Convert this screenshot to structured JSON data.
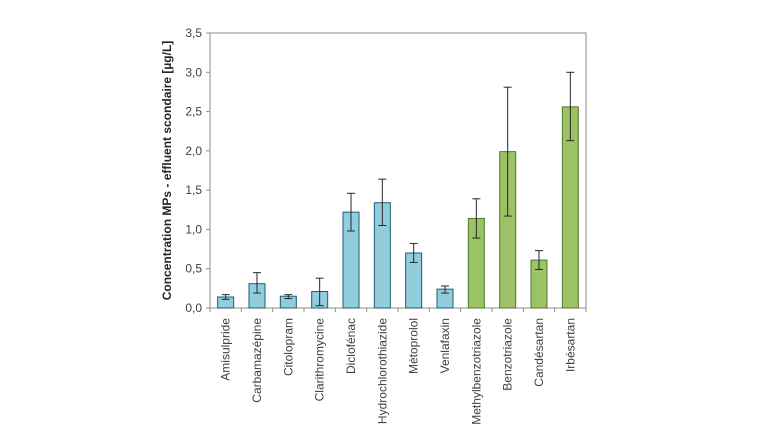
{
  "chart_data": {
    "type": "bar",
    "title": "",
    "xlabel": "",
    "ylabel": "Concentration MPs - effluent scondaire [µg/L]",
    "ylim": [
      0,
      3.5
    ],
    "yticks": [
      "0,0",
      "0,5",
      "1,0",
      "1,5",
      "2,0",
      "2,5",
      "3,0",
      "3,5"
    ],
    "grid": false,
    "legend": "none",
    "categories": [
      "Amisulpride",
      "Carbamazépine",
      "Citolopram",
      "Clarithromycine",
      "Diclofénac",
      "Hydrochlorothiazide",
      "Métoprolol",
      "Venlafaxin",
      "Methylbenzotriazole",
      "Benzotriazole",
      "Candésartan",
      "Irbésartan"
    ],
    "values": [
      0.14,
      0.31,
      0.15,
      0.21,
      1.22,
      1.34,
      0.7,
      0.24,
      1.14,
      1.99,
      0.61,
      2.56
    ],
    "error_low": [
      0.11,
      0.19,
      0.12,
      0.03,
      0.98,
      1.05,
      0.58,
      0.19,
      0.89,
      1.17,
      0.49,
      2.13
    ],
    "error_high": [
      0.17,
      0.45,
      0.17,
      0.38,
      1.46,
      1.64,
      0.82,
      0.28,
      1.39,
      2.81,
      0.73,
      3.0
    ],
    "colors": [
      "#92cddc",
      "#92cddc",
      "#92cddc",
      "#92cddc",
      "#92cddc",
      "#92cddc",
      "#92cddc",
      "#92cddc",
      "#9bc265",
      "#9bc265",
      "#9bc265",
      "#9bc265"
    ],
    "edge_colors": [
      "#1f5d7a",
      "#1f5d7a",
      "#1f5d7a",
      "#1f5d7a",
      "#1f5d7a",
      "#1f5d7a",
      "#1f5d7a",
      "#1f5d7a",
      "#4f7a27",
      "#4f7a27",
      "#4f7a27",
      "#4f7a27"
    ]
  }
}
